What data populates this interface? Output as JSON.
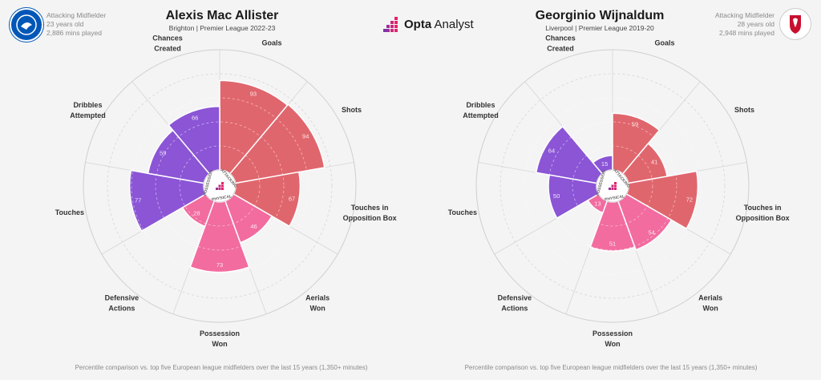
{
  "branding": {
    "logo_bold": "Opta",
    "logo_light": " Analyst"
  },
  "players": [
    {
      "name": "Alexis Mac Allister",
      "subtitle": "Brighton | Premier League 2022-23",
      "position": "Attacking Midfielder",
      "age": "23 years old",
      "minutes": "2,886 mins played",
      "club_color": "#0057b8"
    },
    {
      "name": "Georginio Wijnaldum",
      "subtitle": "Liverpool | Premier League 2019-20",
      "position": "Attacking Midfielder",
      "age": "28 years old",
      "minutes": "2,948 mins played",
      "club_color": "#c8102e"
    }
  ],
  "footnote": "Percentile comparison vs. top five European league midfielders over the last 15 years (1,350+ minutes)",
  "hub_labels": [
    "POSSESSION",
    "ATTACKING",
    "PHYSICAL"
  ],
  "chart_data": [
    {
      "type": "polar-bar",
      "title": "Alexis Mac Allister",
      "rlim": [
        0,
        100
      ],
      "categories": [
        "Goals",
        "Shots",
        "Touches in Opposition Box",
        "Aerials Won",
        "Possession Won",
        "Defensive Actions",
        "Touches",
        "Dribbles Attempted",
        "Chances Created"
      ],
      "groups": [
        "Attacking",
        "Attacking",
        "Attacking",
        "Physical",
        "Physical",
        "Physical",
        "Possession",
        "Possession",
        "Possession"
      ],
      "values": [
        93,
        94,
        67,
        46,
        73,
        28,
        77,
        59,
        66
      ],
      "colors": {
        "Attacking": "#e0666d",
        "Physical": "#f26c9f",
        "Possession": "#8b55d6"
      }
    },
    {
      "type": "polar-bar",
      "title": "Georginio Wijnaldum",
      "rlim": [
        0,
        100
      ],
      "categories": [
        "Goals",
        "Shots",
        "Touches in Opposition Box",
        "Aerials Won",
        "Possession Won",
        "Defensive Actions",
        "Touches",
        "Dribbles Attempted",
        "Chances Created"
      ],
      "groups": [
        "Attacking",
        "Attacking",
        "Attacking",
        "Physical",
        "Physical",
        "Physical",
        "Possession",
        "Possession",
        "Possession"
      ],
      "values": [
        59,
        41,
        72,
        54,
        51,
        13,
        50,
        64,
        15
      ],
      "colors": {
        "Attacking": "#e0666d",
        "Physical": "#f26c9f",
        "Possession": "#8b55d6"
      }
    }
  ]
}
